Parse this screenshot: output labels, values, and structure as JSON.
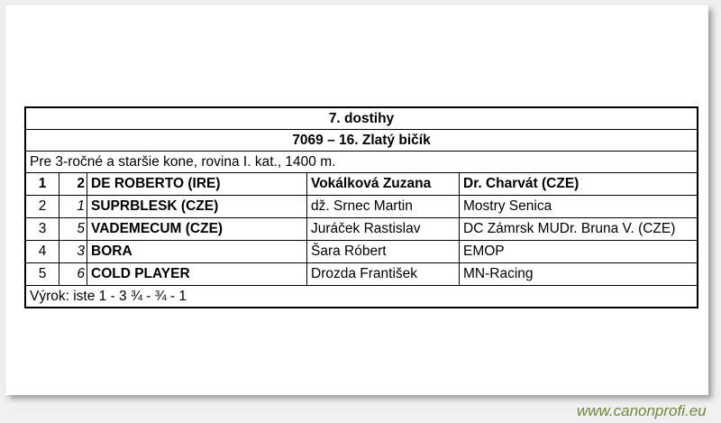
{
  "title": "7. dostihy",
  "subtitle": "7069 – 16. Zlatý bičík",
  "description": "Pre 3-ročné a staršie kone, rovina I. kat., 1400 m.",
  "rows": [
    {
      "pos": "1",
      "num": "2",
      "horse": "DE ROBERTO (IRE)",
      "jockey": "Vokálková Zuzana",
      "owner": "Dr. Charvát (CZE)"
    },
    {
      "pos": "2",
      "num": "1",
      "horse": "SUPRBLESK (CZE)",
      "jockey": "dž. Srnec Martin",
      "owner": "Mostry Senica"
    },
    {
      "pos": "3",
      "num": "5",
      "horse": "VADEMECUM (CZE)",
      "jockey": "Juráček Rastislav",
      "owner": "DC Zámrsk MUDr. Bruna V. (CZE)"
    },
    {
      "pos": "4",
      "num": "3",
      "horse": "BORA",
      "jockey": "Šara Róbert",
      "owner": "EMOP"
    },
    {
      "pos": "5",
      "num": "6",
      "horse": "COLD PLAYER",
      "jockey": "Drozda František",
      "owner": "MN-Racing"
    }
  ],
  "result": "Výrok: iste 1 - 3 ¾ - ¾ - 1",
  "watermark": "www.canonprofi.eu",
  "colors": {
    "watermark": "#6b8a3c"
  }
}
